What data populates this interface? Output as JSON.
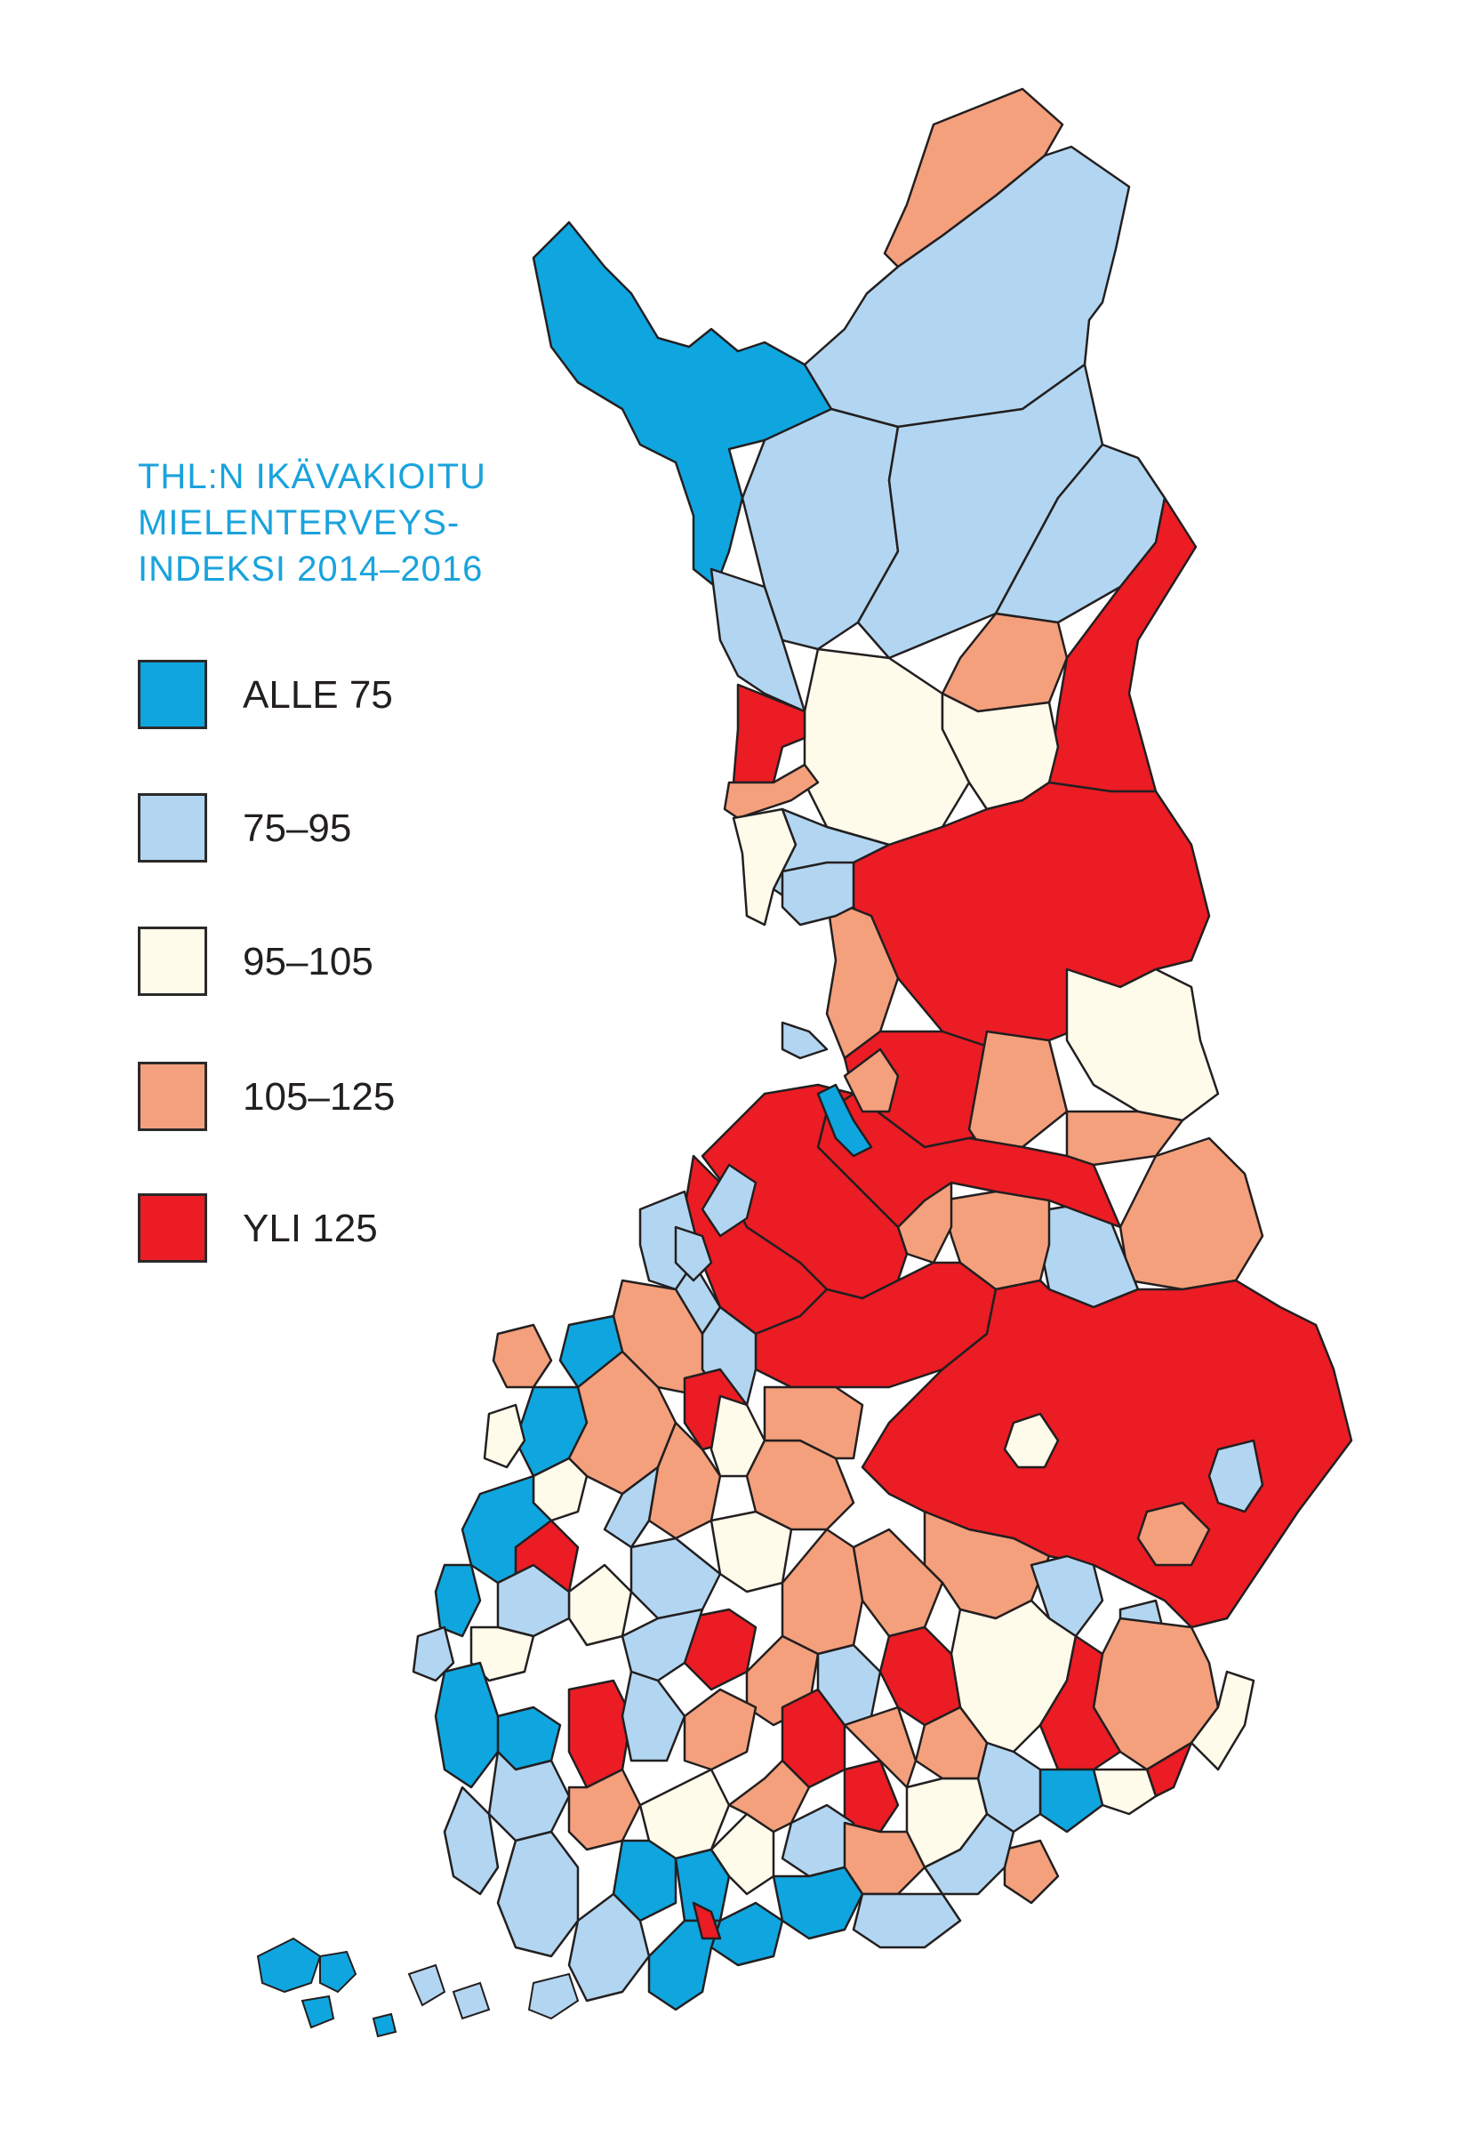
{
  "title": {
    "lines": [
      "THL:N IKÄVAKIOITU",
      "MIELENTERVEYS-",
      "INDEKSI 2014–2016"
    ]
  },
  "legend": [
    {
      "label": "ALLE 75",
      "color": "#0fa6e0"
    },
    {
      "label": "75–95",
      "color": "#b2d6f1"
    },
    {
      "label": "95–105",
      "color": "#fffbea"
    },
    {
      "label": "105–125",
      "color": "#f4a07c"
    },
    {
      "label": "YLI 125",
      "color": "#eb1c24"
    }
  ],
  "map": {
    "country": "Finland",
    "region_classes": [
      "ALLE 75",
      "75–95",
      "95–105",
      "105–125",
      "YLI 125"
    ]
  }
}
